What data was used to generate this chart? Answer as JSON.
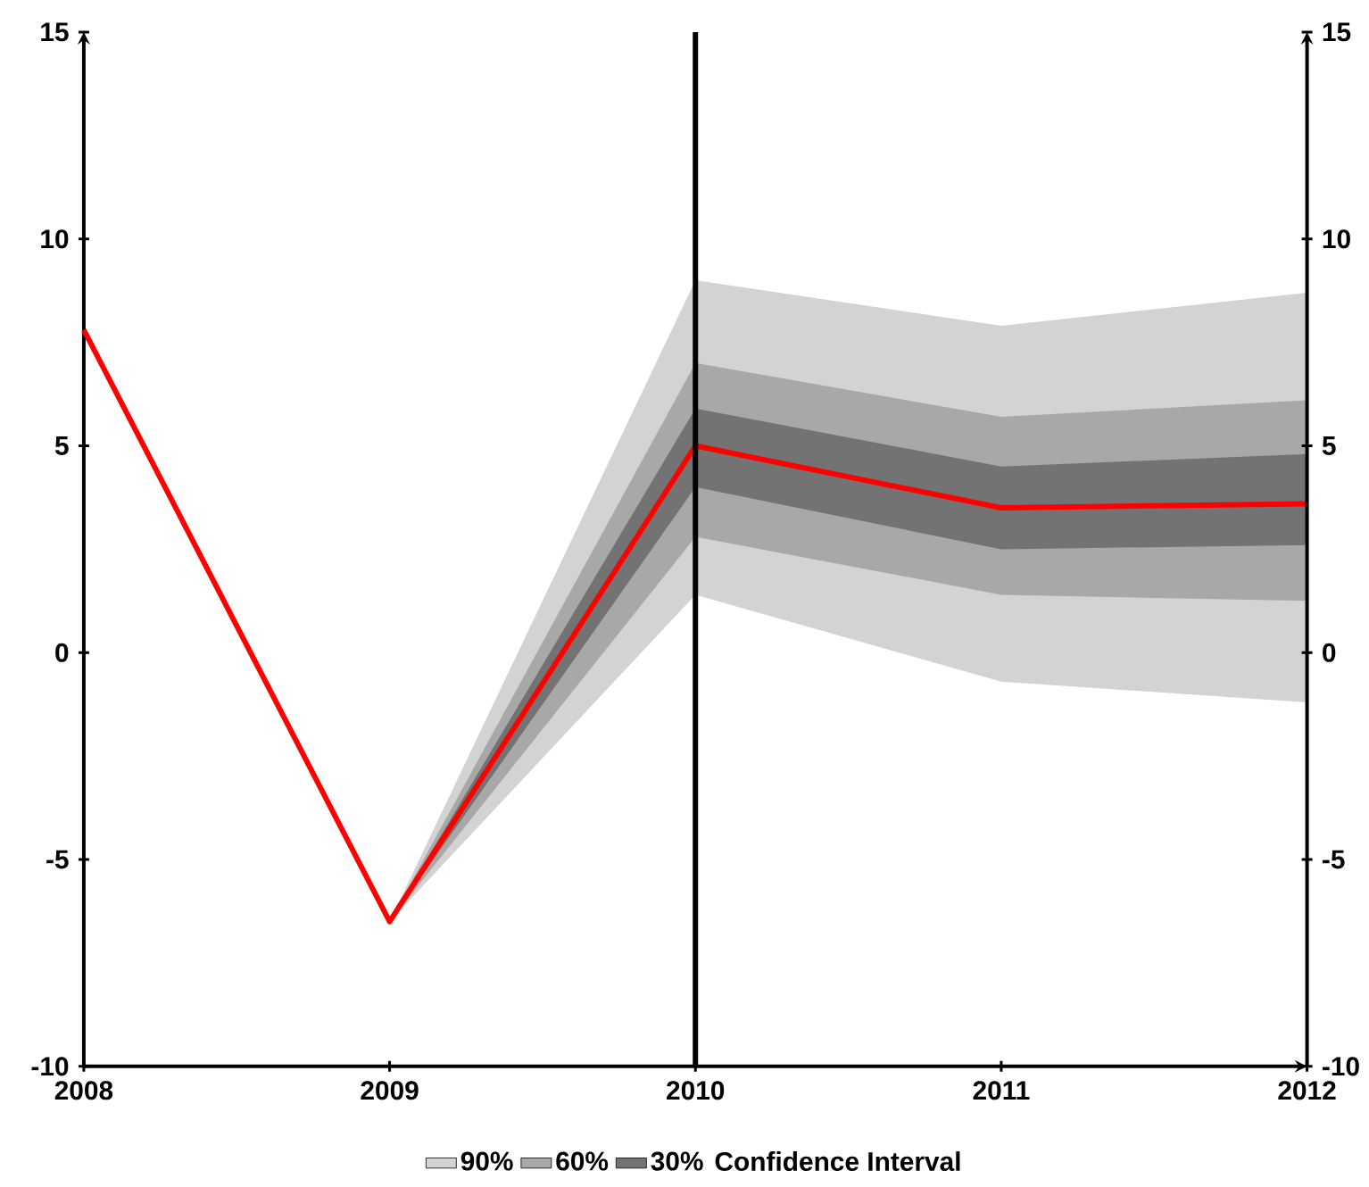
{
  "chart_data": {
    "type": "line",
    "x": [
      2008,
      2009,
      2010,
      2011,
      2012
    ],
    "series": [
      {
        "name": "90%",
        "color": "#d3d3d3",
        "x": [
          2009,
          2010,
          2011,
          2012
        ],
        "values": [
          null,
          null,
          null,
          null
        ],
        "lower": [
          -6.5,
          1.4,
          -0.7,
          -1.2
        ],
        "upper": [
          -6.5,
          9.0,
          7.9,
          8.7
        ]
      },
      {
        "name": "60%",
        "color": "#a8a8a8",
        "x": [
          2009,
          2010,
          2011,
          2012
        ],
        "values": [
          null,
          null,
          null,
          null
        ],
        "lower": [
          -6.5,
          2.8,
          1.4,
          1.25
        ],
        "upper": [
          -6.5,
          7.0,
          5.7,
          6.1
        ]
      },
      {
        "name": "30%",
        "color": "#737373",
        "x": [
          2009,
          2010,
          2011,
          2012
        ],
        "values": [
          null,
          null,
          null,
          null
        ],
        "lower": [
          -6.5,
          4.0,
          2.5,
          2.6
        ],
        "upper": [
          -6.5,
          5.9,
          4.5,
          4.8
        ]
      },
      {
        "color": "#ff0000",
        "values": [
          7.8,
          -6.5,
          5.0,
          3.5,
          3.6
        ]
      }
    ],
    "legend_title": "Confidence Interval",
    "legend": "bottom",
    "xlim": [
      2008,
      2012
    ],
    "xticks": [
      2008,
      2009,
      2010,
      2011,
      2012
    ],
    "ylim": [
      -10,
      15
    ],
    "yticks": [
      -10,
      -5,
      0,
      5,
      10,
      15
    ],
    "y2lim": [
      -10,
      15
    ],
    "y2ticks": [
      -10,
      -5,
      0,
      5,
      10,
      15
    ],
    "ref_lines": [
      {
        "axis": "x",
        "value": 2010,
        "color": "#000000"
      }
    ],
    "grid": false,
    "marker": "none",
    "line_style": "solid"
  }
}
